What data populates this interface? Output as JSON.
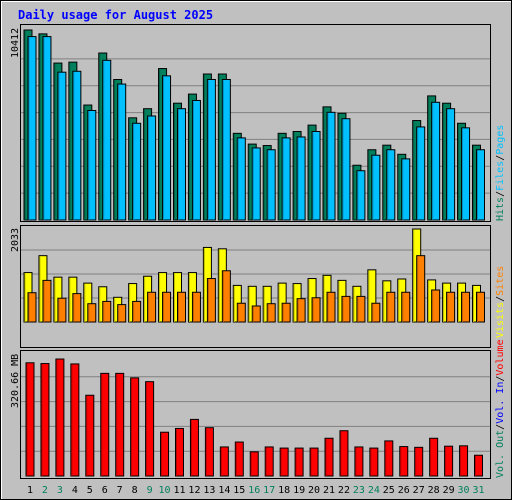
{
  "title": "Daily usage for August 2025",
  "colors": {
    "background": "#c0c0c0",
    "plot": "#c0c0c0",
    "title": "#0000ff",
    "hits": "#00805c",
    "files": "#00c0ff",
    "pages": "#00c0ff",
    "visits": "#ffff00",
    "sites": "#ff8000",
    "kbytes": "#ff0000",
    "weekday": "#000000",
    "weekend": "#00805c"
  },
  "legends": {
    "top": [
      "Hits",
      "Files",
      "Pages"
    ],
    "middle": [
      "Visits",
      "Sites"
    ],
    "bottom": [
      "Vol. Out",
      "Vol. In",
      "Volume"
    ]
  },
  "y_labels": {
    "top": "10412",
    "middle": "2033",
    "bottom": "320.66 MB"
  },
  "chart_data": [
    {
      "type": "bar",
      "title": "Daily usage for August 2025",
      "panel": "hits-files",
      "categories": [
        "1",
        "2",
        "3",
        "4",
        "5",
        "6",
        "7",
        "8",
        "9",
        "10",
        "11",
        "12",
        "13",
        "14",
        "15",
        "16",
        "17",
        "18",
        "19",
        "20",
        "21",
        "22",
        "23",
        "24",
        "25",
        "26",
        "27",
        "28",
        "29",
        "30",
        "31"
      ],
      "weekend_days": [
        "2",
        "3",
        "9",
        "10",
        "16",
        "17",
        "23",
        "24",
        "30",
        "31"
      ],
      "ylim": [
        0,
        10412
      ],
      "series": [
        {
          "name": "Hits",
          "values": [
            10412,
            10200,
            8600,
            8650,
            6300,
            9150,
            7700,
            5600,
            6100,
            8300,
            6400,
            6900,
            8000,
            8000,
            4750,
            4160,
            4080,
            4750,
            4850,
            5200,
            6200,
            5850,
            3000,
            3850,
            4100,
            3600,
            5450,
            6800,
            6400,
            5300,
            4100
          ]
        },
        {
          "name": "Files",
          "values": [
            10050,
            10050,
            8100,
            8150,
            6000,
            8750,
            7450,
            5300,
            5700,
            7900,
            6100,
            6550,
            7700,
            7700,
            4500,
            3950,
            3850,
            4500,
            4550,
            4850,
            5900,
            5550,
            2700,
            3550,
            3850,
            3350,
            5100,
            6450,
            6100,
            5050,
            3850
          ]
        },
        {
          "name": "Pages",
          "values": [
            8000,
            8000,
            7000,
            7000,
            4000,
            5500,
            4500,
            4300,
            4500,
            5300,
            4300,
            5200,
            5300,
            5300,
            3300,
            3000,
            3000,
            3300,
            3300,
            3300,
            4000,
            3800,
            1300,
            1300,
            2200,
            2000,
            2600,
            3000,
            3000,
            2800,
            1000
          ]
        }
      ]
    },
    {
      "type": "bar",
      "panel": "visits-sites",
      "categories": [
        "1",
        "2",
        "3",
        "4",
        "5",
        "6",
        "7",
        "8",
        "9",
        "10",
        "11",
        "12",
        "13",
        "14",
        "15",
        "16",
        "17",
        "18",
        "19",
        "20",
        "21",
        "22",
        "23",
        "24",
        "25",
        "26",
        "27",
        "28",
        "29",
        "30",
        "31"
      ],
      "ylim": [
        0,
        2033
      ],
      "series": [
        {
          "name": "Visits",
          "values": [
            1080,
            1450,
            980,
            980,
            850,
            770,
            540,
            840,
            1000,
            1080,
            1080,
            1080,
            1630,
            1600,
            800,
            780,
            780,
            850,
            840,
            950,
            1020,
            910,
            780,
            1140,
            900,
            940,
            2033,
            920,
            850,
            850,
            800
          ]
        },
        {
          "name": "Sites",
          "values": [
            640,
            910,
            520,
            620,
            400,
            450,
            380,
            450,
            650,
            650,
            650,
            650,
            950,
            1120,
            410,
            350,
            400,
            410,
            510,
            530,
            650,
            560,
            560,
            410,
            650,
            650,
            1450,
            700,
            650,
            650,
            650
          ]
        }
      ]
    },
    {
      "type": "bar",
      "panel": "volume",
      "categories": [
        "1",
        "2",
        "3",
        "4",
        "5",
        "6",
        "7",
        "8",
        "9",
        "10",
        "11",
        "12",
        "13",
        "14",
        "15",
        "16",
        "17",
        "18",
        "19",
        "20",
        "21",
        "22",
        "23",
        "24",
        "25",
        "26",
        "27",
        "28",
        "29",
        "30",
        "31"
      ],
      "ylabel": "MB",
      "ylim": [
        0,
        320.66
      ],
      "series": [
        {
          "name": "Volume",
          "values": [
            300,
            298,
            310,
            297,
            214,
            272,
            272,
            260,
            250,
            116,
            126,
            150,
            128,
            77,
            90,
            64,
            77,
            74,
            74,
            74,
            100,
            120,
            77,
            74,
            93,
            78,
            76,
            100,
            79,
            80,
            55
          ]
        }
      ]
    }
  ]
}
